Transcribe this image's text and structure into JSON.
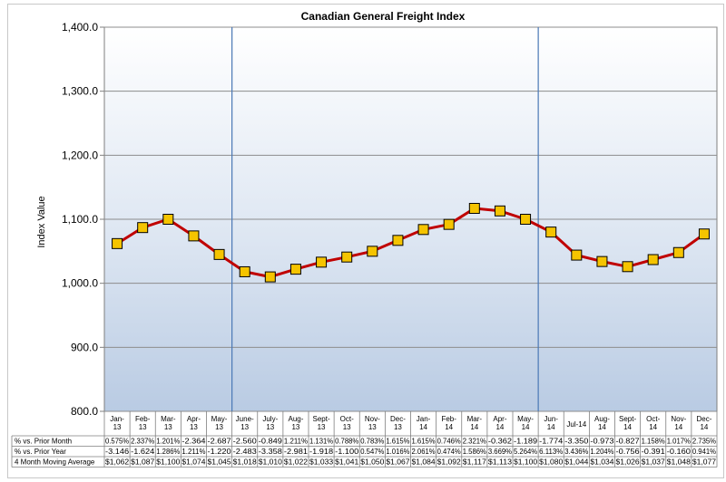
{
  "chart_data": {
    "type": "line",
    "title": "Canadian General Freight Index",
    "ylabel": "Index Value",
    "xlabel": "",
    "ylim": [
      800,
      1400
    ],
    "yticks": [
      "1,400.0",
      "1,300.0",
      "1,200.0",
      "1,100.0",
      "1,000.0",
      "900.0",
      "800.0"
    ],
    "ytick_values": [
      1400,
      1300,
      1200,
      1100,
      1000,
      900,
      800
    ],
    "categories": [
      [
        "Jan-",
        "13"
      ],
      [
        "Feb-",
        "13"
      ],
      [
        "Mar-",
        "13"
      ],
      [
        "Apr-",
        "13"
      ],
      [
        "May-",
        "13"
      ],
      [
        "June-",
        "13"
      ],
      [
        "July-",
        "13"
      ],
      [
        "Aug-",
        "13"
      ],
      [
        "Sept-",
        "13"
      ],
      [
        "Oct-",
        "13"
      ],
      [
        "Nov-",
        "13"
      ],
      [
        "Dec-",
        "13"
      ],
      [
        "Jan-",
        "14"
      ],
      [
        "Feb-",
        "14"
      ],
      [
        "Mar-",
        "14"
      ],
      [
        "Apr-",
        "14"
      ],
      [
        "May-",
        "14"
      ],
      [
        "Jun-",
        "14"
      ],
      [
        "Jul-14"
      ],
      [
        "Aug-",
        "14"
      ],
      [
        "Sept-",
        "14"
      ],
      [
        "Oct-",
        "14"
      ],
      [
        "Nov-",
        "14"
      ],
      [
        "Dec-",
        "14"
      ]
    ],
    "values": [
      1062,
      1087,
      1100,
      1074,
      1045,
      1018,
      1010,
      1022,
      1033,
      1041,
      1050,
      1067,
      1084,
      1092,
      1117,
      1113,
      1100,
      1080,
      1044,
      1034,
      1026,
      1037,
      1048,
      1077
    ],
    "dividers_after": [
      5,
      17
    ],
    "grid": true,
    "legend": "none",
    "series_color": "#c00000",
    "marker_color": "#f5c400",
    "table": [
      {
        "label": "% vs. Prior Month",
        "cells": [
          "0.575%",
          "2.337%",
          "1.201%",
          "-2.364",
          "-2.687",
          "-2.560",
          "-0.849",
          "1.211%",
          "1.131%",
          "0.788%",
          "0.783%",
          "1.615%",
          "1.615%",
          "0.746%",
          "2.321%",
          "-0.362",
          "-1.189",
          "-1.774",
          "-3.350",
          "-0.973",
          "-0.827",
          "1.158%",
          "1.017%",
          "2.735%"
        ]
      },
      {
        "label": "% vs. Prior Year",
        "cells": [
          "-3.146",
          "-1.624",
          "1.286%",
          "1.211%",
          "-1.220",
          "-2.483",
          "-3.358",
          "-2.981",
          "-1.918",
          "-1.100",
          "0.547%",
          "1.016%",
          "2.061%",
          "0.474%",
          "1.586%",
          "3.669%",
          "5.264%",
          "6.113%",
          "3.436%",
          "1.204%",
          "-0.756",
          "-0.391",
          "-0.160",
          "0.941%"
        ]
      },
      {
        "label": "4 Month Moving Average",
        "cells": [
          "$1,062",
          "$1,087",
          "$1,100",
          "$1,074",
          "$1,045",
          "$1,018",
          "$1,010",
          "$1,022",
          "$1,033",
          "$1,041",
          "$1,050",
          "$1,067",
          "$1,084",
          "$1,092",
          "$1,117",
          "$1,113",
          "$1,100",
          "$1,080",
          "$1,044",
          "$1,034",
          "$1,026",
          "$1,037",
          "$1,048",
          "$1,077"
        ]
      }
    ]
  }
}
